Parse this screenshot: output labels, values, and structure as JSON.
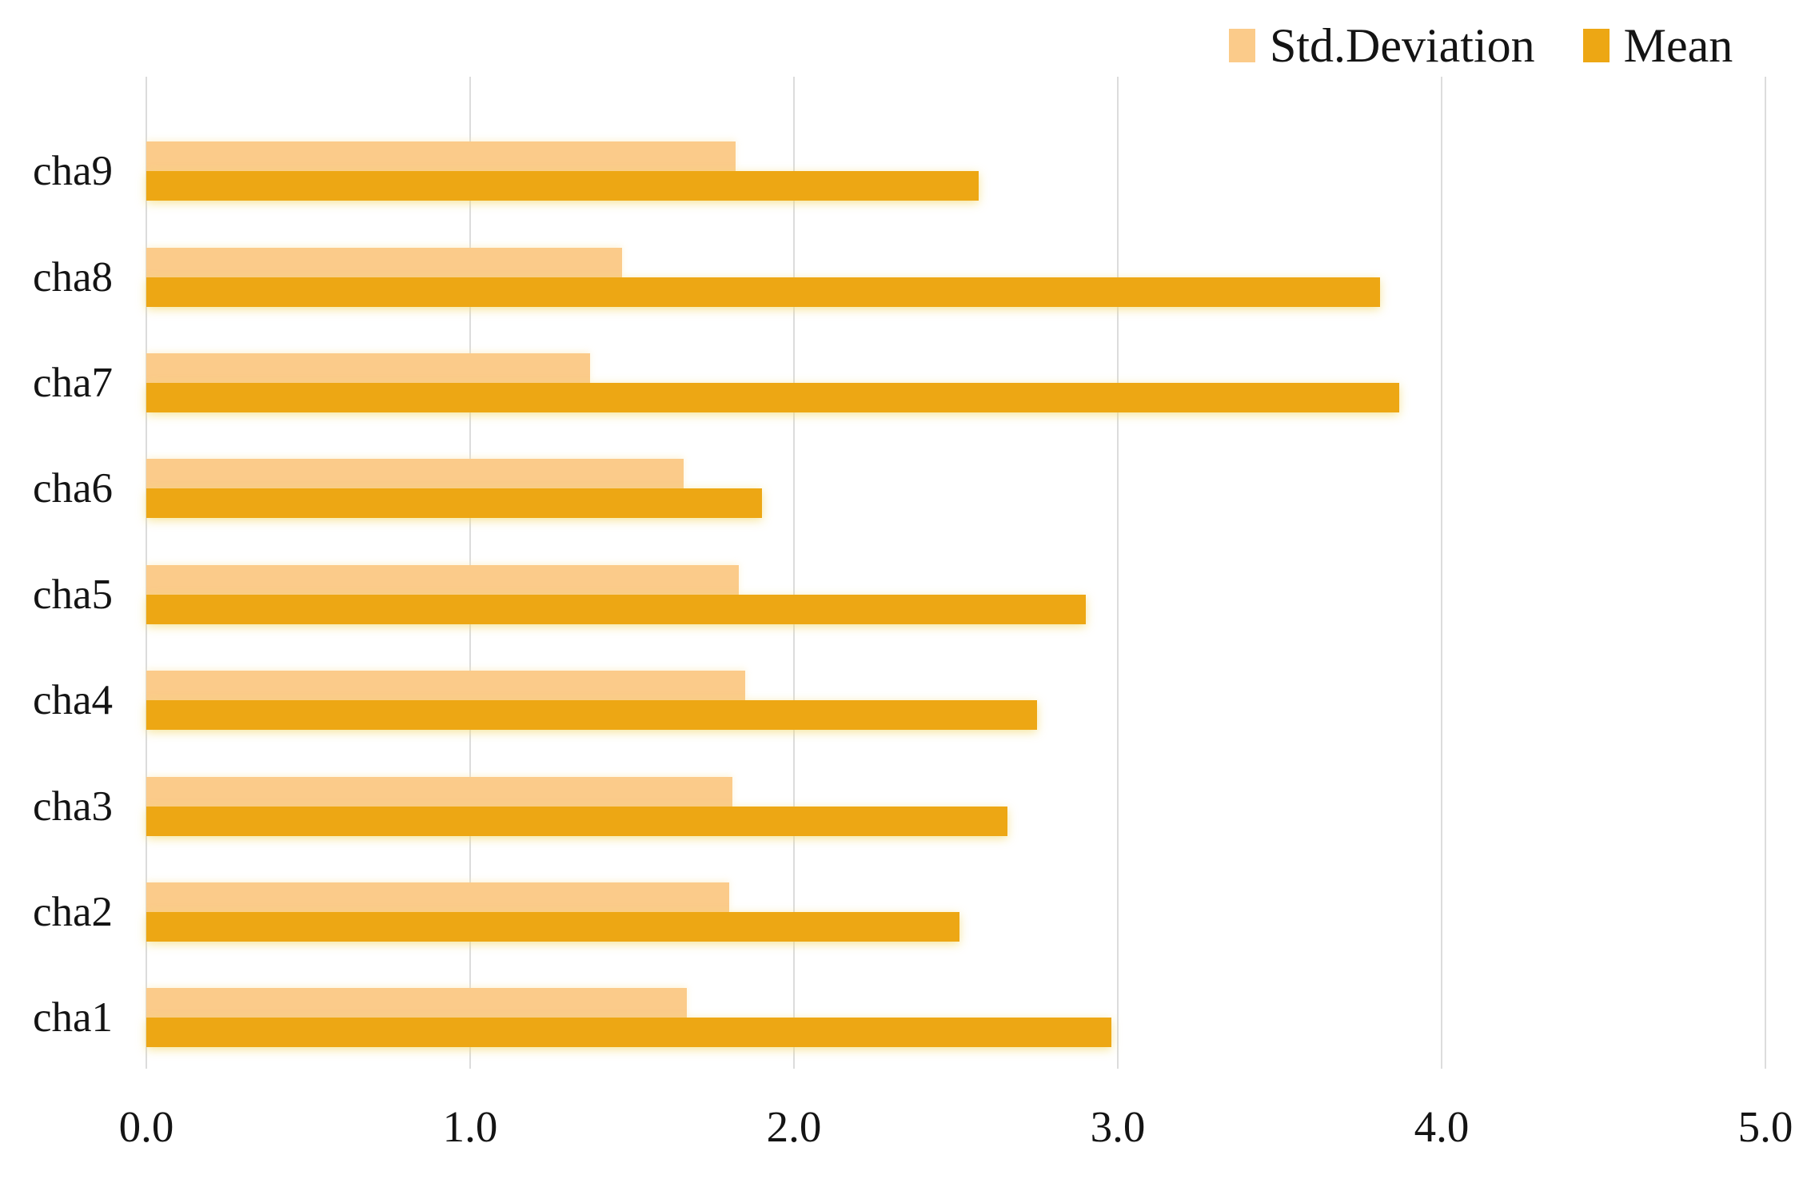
{
  "chart_data": {
    "type": "bar",
    "orientation": "horizontal",
    "title": "",
    "xlabel": "",
    "ylabel": "",
    "row_order": "top-to-bottom",
    "categories": [
      "cha9",
      "cha8",
      "cha7",
      "cha6",
      "cha5",
      "cha4",
      "cha3",
      "cha2",
      "cha1"
    ],
    "series": [
      {
        "name": "Std.Deviation",
        "color": "#FBCB8A",
        "values": [
          1.82,
          1.47,
          1.37,
          1.66,
          1.83,
          1.85,
          1.81,
          1.8,
          1.67
        ]
      },
      {
        "name": "Mean",
        "color": "#EDA714",
        "values": [
          2.57,
          3.81,
          3.87,
          1.9,
          2.9,
          2.75,
          2.66,
          2.51,
          2.98
        ]
      }
    ],
    "xlim": [
      0,
      5
    ],
    "xticks": [
      0,
      1,
      2,
      3,
      4,
      5
    ],
    "xtick_labels": [
      "0.0",
      "1.0",
      "2.0",
      "3.0",
      "4.0",
      "5.0"
    ],
    "grid": "vertical",
    "gridline_color": "#DCDCDC",
    "background": "#FFFFFF",
    "text_color": "#141414",
    "legend_position": "top-right"
  }
}
